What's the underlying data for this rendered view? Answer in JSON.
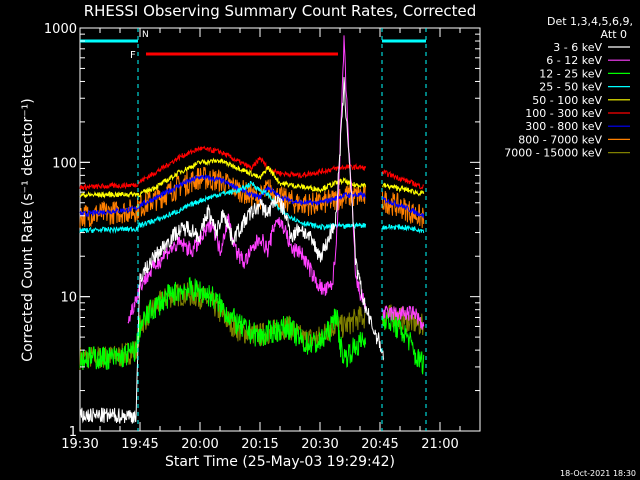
{
  "chart_data": {
    "type": "line",
    "title": "RHESSI Observing Summary Count Rates, Corrected",
    "xlabel": "Start Time (25-May-03 19:29:42)",
    "ylabel": "Corrected Count Rate (s⁻¹ detector⁻¹)",
    "x_unit": "minutes after 19:30 UT",
    "xlim": [
      0,
      100
    ],
    "ylim": [
      1,
      1000
    ],
    "yscale": "log",
    "x_ticks": [
      {
        "x": 0,
        "label": "19:30"
      },
      {
        "x": 15,
        "label": "19:45"
      },
      {
        "x": 30,
        "label": "20:00"
      },
      {
        "x": 45,
        "label": "20:15"
      },
      {
        "x": 60,
        "label": "20:30"
      },
      {
        "x": 75,
        "label": "20:45"
      },
      {
        "x": 90,
        "label": "21:00"
      }
    ],
    "y_ticks": [
      {
        "y": 1,
        "label": "1"
      },
      {
        "y": 10,
        "label": "10"
      },
      {
        "y": 100,
        "label": "100"
      },
      {
        "y": 1000,
        "label": "1000"
      }
    ],
    "legend_header": [
      "Det 1,3,4,5,6,9,",
      "Att 0"
    ],
    "footer_date": "18-Oct-2021 18:30",
    "series": [
      {
        "name": "3 - 6 keV",
        "color": "#ffffff",
        "x": [
          0,
          14,
          15,
          17,
          20,
          24,
          27,
          30,
          32,
          34,
          36,
          38,
          40,
          42,
          45,
          47,
          49,
          51,
          53,
          55,
          58,
          60,
          62,
          64,
          66,
          67,
          68,
          69,
          71,
          73,
          75,
          76
        ],
        "y": [
          1.3,
          1.3,
          14,
          17,
          22,
          30,
          33,
          28,
          44,
          30,
          43,
          27,
          32,
          40,
          48,
          42,
          54,
          44,
          28,
          33,
          26,
          20,
          26,
          38,
          380,
          150,
          50,
          17,
          9,
          6,
          4.5,
          3.5
        ]
      },
      {
        "name": "6 - 12 keV",
        "color": "#ff40ff",
        "x": [
          12,
          15,
          18,
          22,
          25,
          28,
          30,
          33,
          35,
          37,
          39,
          41,
          43,
          45,
          47,
          49,
          51,
          53,
          55,
          57,
          59,
          61,
          63,
          64,
          65,
          66,
          67,
          68,
          69,
          71,
          73,
          76,
          80,
          84,
          85,
          86
        ],
        "y": [
          6.5,
          12,
          16,
          22,
          25,
          22,
          26,
          36,
          22,
          38,
          22,
          18,
          22,
          28,
          22,
          38,
          33,
          22,
          22,
          17,
          13,
          11,
          12,
          22,
          120,
          780,
          170,
          50,
          13,
          9,
          8,
          7.5,
          7.5,
          7.5,
          6.5,
          5.5
        ]
      },
      {
        "name": "12 - 25 keV",
        "color": "#00ff00",
        "x": [
          0,
          10,
          14,
          15,
          18,
          22,
          26,
          30,
          33,
          36,
          40,
          45,
          48,
          52,
          56,
          60,
          63,
          64,
          65,
          66,
          68,
          70,
          73,
          76,
          79,
          82,
          84,
          86
        ],
        "y": [
          3.5,
          3.5,
          4,
          6,
          8,
          10,
          11.5,
          11,
          10,
          8,
          6,
          5,
          5.5,
          6,
          4.5,
          4.5,
          6,
          8,
          4.5,
          3.5,
          4,
          4.5,
          5,
          7,
          6,
          5,
          3.5,
          3.2
        ]
      },
      {
        "name": "25 - 50 keV",
        "color": "#00ffff",
        "x": [
          0,
          14,
          15,
          20,
          25,
          30,
          35,
          40,
          43,
          45,
          47,
          50,
          55,
          58,
          60,
          62,
          64,
          66,
          68,
          70,
          73,
          76,
          80,
          84,
          86
        ],
        "y": [
          31,
          32,
          34,
          38,
          44,
          52,
          58,
          62,
          70,
          62,
          58,
          44,
          36,
          34,
          33,
          33,
          34,
          33,
          34,
          34,
          34,
          33,
          33,
          32,
          31
        ]
      },
      {
        "name": "50 - 100 keV",
        "color": "#ffff00",
        "x": [
          0,
          14,
          15,
          20,
          25,
          30,
          35,
          40,
          43,
          45,
          47,
          50,
          55,
          60,
          64,
          66,
          68,
          70,
          75,
          80,
          86
        ],
        "y": [
          57,
          58,
          58,
          68,
          85,
          100,
          103,
          90,
          82,
          76,
          92,
          70,
          66,
          63,
          70,
          73,
          68,
          68,
          68,
          64,
          58
        ]
      },
      {
        "name": "100 - 300 keV",
        "color": "#ff0000",
        "x": [
          0,
          14,
          15,
          20,
          25,
          30,
          35,
          40,
          43,
          45,
          47,
          50,
          55,
          60,
          64,
          66,
          70,
          75,
          80,
          86
        ],
        "y": [
          65,
          68,
          72,
          88,
          110,
          127,
          120,
          100,
          90,
          108,
          90,
          83,
          80,
          85,
          90,
          92,
          92,
          86,
          76,
          65
        ]
      },
      {
        "name": "300 - 800 keV",
        "color": "#0000ff",
        "x": [
          0,
          14,
          15,
          20,
          25,
          30,
          35,
          40,
          43,
          45,
          47,
          50,
          55,
          60,
          64,
          66,
          70,
          75,
          80,
          86
        ],
        "y": [
          41,
          45,
          48,
          56,
          68,
          78,
          74,
          63,
          57,
          55,
          65,
          55,
          50,
          50,
          54,
          57,
          57,
          54,
          48,
          40
        ]
      },
      {
        "name": "800 - 7000 keV",
        "color": "#ff8000",
        "x": [
          0,
          14,
          15,
          20,
          25,
          30,
          35,
          40,
          43,
          45,
          47,
          50,
          55,
          60,
          64,
          66,
          70,
          75,
          80,
          86
        ],
        "y": [
          40,
          44,
          47,
          55,
          67,
          77,
          73,
          62,
          56,
          54,
          64,
          54,
          49,
          49,
          53,
          56,
          56,
          53,
          47,
          38
        ]
      },
      {
        "name": "7000 - 15000 keV",
        "color": "#808000",
        "x": [
          0,
          10,
          14,
          15,
          18,
          22,
          26,
          30,
          33,
          36,
          40,
          45,
          48,
          52,
          56,
          60,
          63,
          66,
          68,
          70,
          73,
          76,
          80,
          84,
          86
        ],
        "y": [
          3.5,
          3.6,
          4,
          6,
          8,
          10,
          10.5,
          10,
          9,
          7,
          5.5,
          5.2,
          5.5,
          6,
          4.8,
          5,
          6,
          6,
          6.5,
          7,
          7,
          7.3,
          7,
          6.3,
          6
        ]
      }
    ],
    "annotations": {
      "night_label": "N",
      "flare_label": "F",
      "eclipse_end_x": 14.5,
      "eclipse_start_x": 75.5,
      "night_bars": [
        [
          0,
          14.5
        ],
        [
          75.5,
          86.5
        ]
      ],
      "flare_bar": [
        16.5,
        64.5
      ],
      "bar_level": 800,
      "flare_level": 640,
      "gaps": [
        [
          71.5,
          75.5
        ]
      ]
    }
  }
}
